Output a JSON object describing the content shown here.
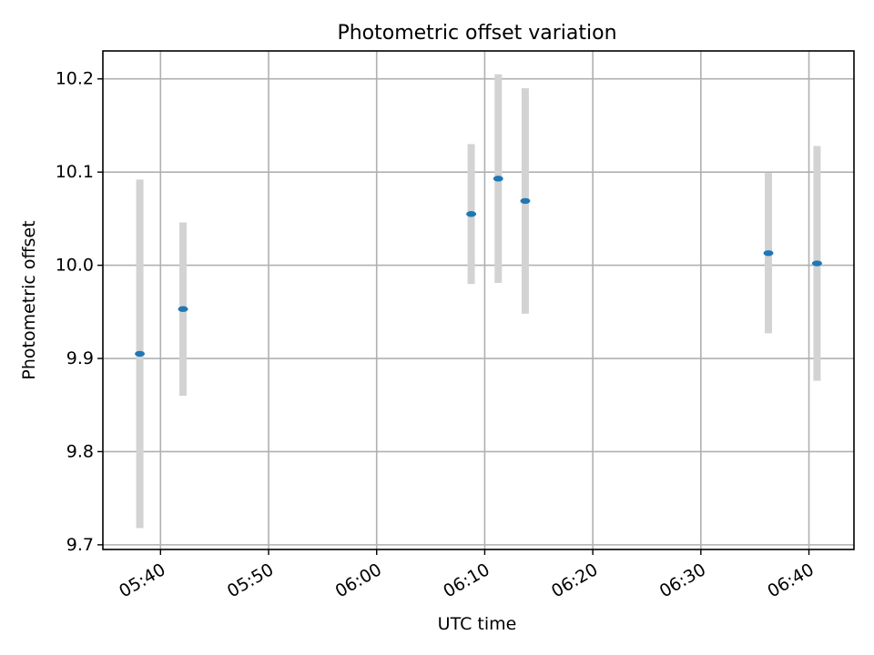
{
  "chart_data": {
    "type": "scatter",
    "title": "Photometric offset variation",
    "xlabel": "UTC time",
    "ylabel": "Photometric offset",
    "xlim": [
      "05:34:40",
      "06:44:10"
    ],
    "ylim": [
      9.695,
      10.23
    ],
    "grid": true,
    "x_ticks": [
      "05:40",
      "05:50",
      "06:00",
      "06:10",
      "06:20",
      "06:30",
      "06:40"
    ],
    "y_ticks": [
      "9.7",
      "9.8",
      "9.9",
      "10.0",
      "10.1",
      "10.2"
    ],
    "series": [
      {
        "points": [
          {
            "x": "05:38:05",
            "y": 9.905,
            "err": 0.187
          },
          {
            "x": "05:42:05",
            "y": 9.953,
            "err": 0.093
          },
          {
            "x": "06:08:45",
            "y": 10.055,
            "err": 0.075
          },
          {
            "x": "06:11:15",
            "y": 10.093,
            "err": 0.112
          },
          {
            "x": "06:13:45",
            "y": 10.069,
            "err": 0.121
          },
          {
            "x": "06:36:15",
            "y": 10.013,
            "err": 0.086
          },
          {
            "x": "06:40:45",
            "y": 10.002,
            "err": 0.126
          }
        ]
      }
    ],
    "colors": {
      "point": "#1f77b4",
      "errorbar": "#d3d3d3",
      "grid": "#b0b0b0"
    }
  }
}
